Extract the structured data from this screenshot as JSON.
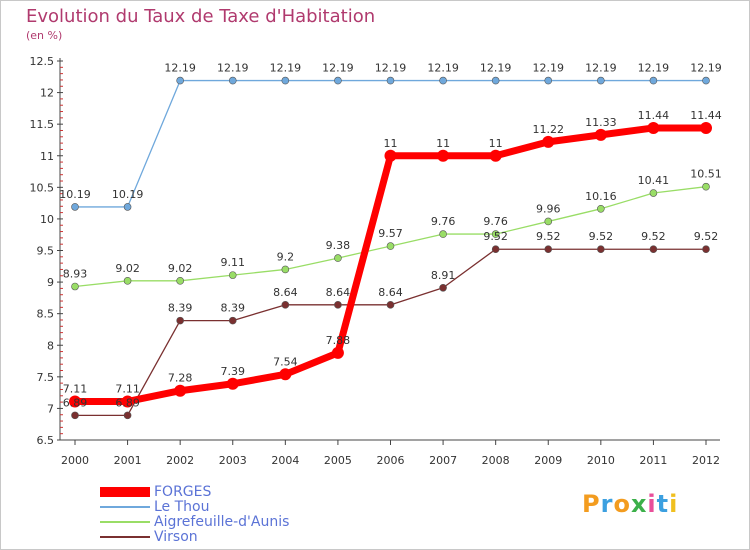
{
  "header": {
    "title": "Evolution du Taux de Taxe d'Habitation",
    "unit": "(en %)"
  },
  "brand": {
    "text": "Proxiti",
    "letter_colors": [
      "#f39c1f",
      "#3ca0e0",
      "#f39c1f",
      "#3cb04a",
      "#e94f9a",
      "#3ca0e0",
      "#f0c020"
    ]
  },
  "chart_data": {
    "type": "line",
    "x": [
      "2000",
      "2001",
      "2002",
      "2003",
      "2004",
      "2005",
      "2006",
      "2007",
      "2008",
      "2009",
      "2010",
      "2011",
      "2012"
    ],
    "ylim": [
      6.5,
      12.5
    ],
    "yticks": [
      "6.5",
      "7",
      "7.5",
      "8",
      "8.5",
      "9",
      "9.5",
      "10",
      "10.5",
      "11",
      "11.5",
      "12",
      "12.5"
    ],
    "grid": false,
    "legend_position": "bottom-left",
    "series": [
      {
        "name": "FORGES",
        "color": "#ff0000",
        "values": [
          7.11,
          7.11,
          7.28,
          7.39,
          7.54,
          7.88,
          11,
          11,
          11,
          11.22,
          11.33,
          11.44,
          11.44
        ],
        "labels": [
          "7.11",
          "7.11",
          "7.28",
          "7.39",
          "7.54",
          "7.88",
          "11",
          "11",
          "11",
          "11.22",
          "11.33",
          "11.44",
          "11.44"
        ]
      },
      {
        "name": "Le Thou",
        "color": "#6fa8dc",
        "values": [
          10.19,
          10.19,
          12.19,
          12.19,
          12.19,
          12.19,
          12.19,
          12.19,
          12.19,
          12.19,
          12.19,
          12.19,
          12.19
        ],
        "labels": [
          "10.19",
          "10.19",
          "12.19",
          "12.19",
          "12.19",
          "12.19",
          "12.19",
          "12.19",
          "12.19",
          "12.19",
          "12.19",
          "12.19",
          "12.19"
        ]
      },
      {
        "name": "Aigrefeuille-d'Aunis",
        "color": "#99dd66",
        "values": [
          8.93,
          9.02,
          9.02,
          9.11,
          9.2,
          9.38,
          9.57,
          9.76,
          9.76,
          9.96,
          10.16,
          10.41,
          10.51
        ],
        "labels": [
          "8.93",
          "9.02",
          "9.02",
          "9.11",
          "9.2",
          "9.38",
          "9.57",
          "9.76",
          "9.76",
          "9.96",
          "10.16",
          "10.41",
          "10.51"
        ]
      },
      {
        "name": "Virson",
        "color": "#7a3030",
        "values": [
          6.89,
          6.89,
          8.39,
          8.39,
          8.64,
          8.64,
          8.64,
          8.91,
          9.52,
          9.52,
          9.52,
          9.52,
          9.52
        ],
        "labels": [
          "6.89",
          "6.89",
          "8.39",
          "8.39",
          "8.64",
          "8.64",
          "8.64",
          "8.91",
          "9.52",
          "9.52",
          "9.52",
          "9.52",
          "9.52"
        ]
      }
    ]
  }
}
